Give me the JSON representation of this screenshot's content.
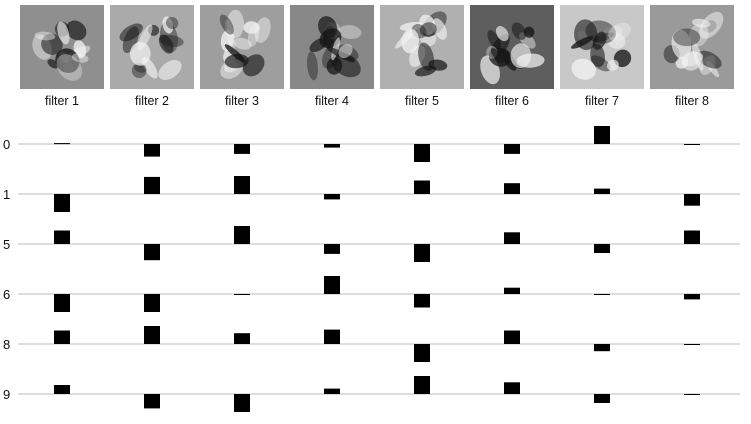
{
  "filters": [
    {
      "label": "filter 1",
      "tone": "#8f8f8f"
    },
    {
      "label": "filter 2",
      "tone": "#aaaaaa"
    },
    {
      "label": "filter 3",
      "tone": "#9e9e9e"
    },
    {
      "label": "filter 4",
      "tone": "#888888"
    },
    {
      "label": "filter 5",
      "tone": "#b0b0b0"
    },
    {
      "label": "filter 6",
      "tone": "#5e5e5e"
    },
    {
      "label": "filter 7",
      "tone": "#c8c8c8"
    },
    {
      "label": "filter 8",
      "tone": "#9a9a9a"
    }
  ],
  "chart_data": {
    "type": "bar",
    "description_of_encoding": "",
    "categories": [
      "filter 1",
      "filter 2",
      "filter 3",
      "filter 4",
      "filter 5",
      "filter 6",
      "filter 7",
      "filter 8"
    ],
    "rows": [
      "0",
      "1",
      "5",
      "6",
      "8",
      "9"
    ],
    "series": [
      {
        "name": "0",
        "values": [
          0.05,
          -0.7,
          -0.55,
          -0.2,
          -1.0,
          -0.55,
          1.0,
          -0.03
        ]
      },
      {
        "name": "1",
        "values": [
          -1.0,
          0.95,
          1.0,
          -0.3,
          0.75,
          0.6,
          0.3,
          -0.65
        ]
      },
      {
        "name": "5",
        "values": [
          0.75,
          -0.9,
          1.0,
          -0.55,
          -1.0,
          0.65,
          -0.5,
          0.75
        ]
      },
      {
        "name": "6",
        "values": [
          -1.0,
          -1.0,
          -0.03,
          1.0,
          -0.75,
          0.35,
          0.0,
          -0.3
        ]
      },
      {
        "name": "8",
        "values": [
          0.75,
          1.0,
          0.6,
          0.8,
          -1.0,
          0.75,
          -0.4,
          -0.03
        ]
      },
      {
        "name": "9",
        "values": [
          0.5,
          -0.8,
          -1.0,
          0.3,
          1.0,
          0.65,
          -0.5,
          -0.02
        ]
      }
    ],
    "ylim": [
      -1,
      1
    ],
    "grid": true,
    "legend": "none",
    "bar_color": "#000000",
    "grid_color": "#dddddd"
  }
}
